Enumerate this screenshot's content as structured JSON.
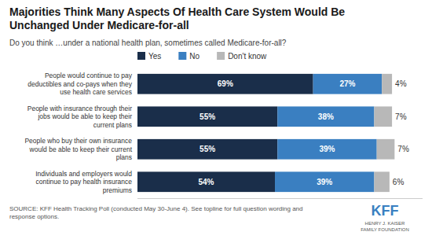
{
  "chart_data": {
    "type": "bar",
    "orientation": "horizontal",
    "stacked": true,
    "title": "Majorities Think Many Aspects Of Health Care System Would Be\nUnchanged Under Medicare-for-all",
    "subtitle": "Do you think …under a national health plan, sometimes called Medicare-for-all?",
    "annotations": [
      "SOURCE: KFF Health Tracking Poll (conducted May 30-June 4). See topline for full question wording and response options.",
      "KFF",
      "HENRY J. KAISER\nFAMILY FOUNDATION"
    ],
    "categories": [
      "People would continue to pay\ndeductibles and co-pays when they\nuse health care services",
      "People with insurance through their\njobs would be able to keep their\ncurrent plans",
      "People who buy their own insurance\nwould be able to keep their current\nplans",
      "Individuals and employers would\ncontinue to pay health insurance\npremiums"
    ],
    "series": [
      {
        "name": "Yes",
        "color": "#1a2e4a",
        "values": [
          69,
          55,
          55,
          54
        ],
        "value_labels": [
          "69%",
          "55%",
          "55%",
          "54%"
        ]
      },
      {
        "name": "No",
        "color": "#3a7fc1",
        "values": [
          27,
          38,
          39,
          39
        ],
        "value_labels": [
          "27%",
          "38%",
          "39%",
          "39%"
        ]
      },
      {
        "name": "Don't know",
        "color": "#b8b8b8",
        "values": [
          4,
          7,
          7,
          6
        ],
        "value_labels": [
          "4%",
          "7%",
          "7%",
          "6%"
        ]
      }
    ],
    "xlim": [
      0,
      112
    ],
    "tick_labels": false,
    "grid": false,
    "legend": "top",
    "data_labels": true
  }
}
